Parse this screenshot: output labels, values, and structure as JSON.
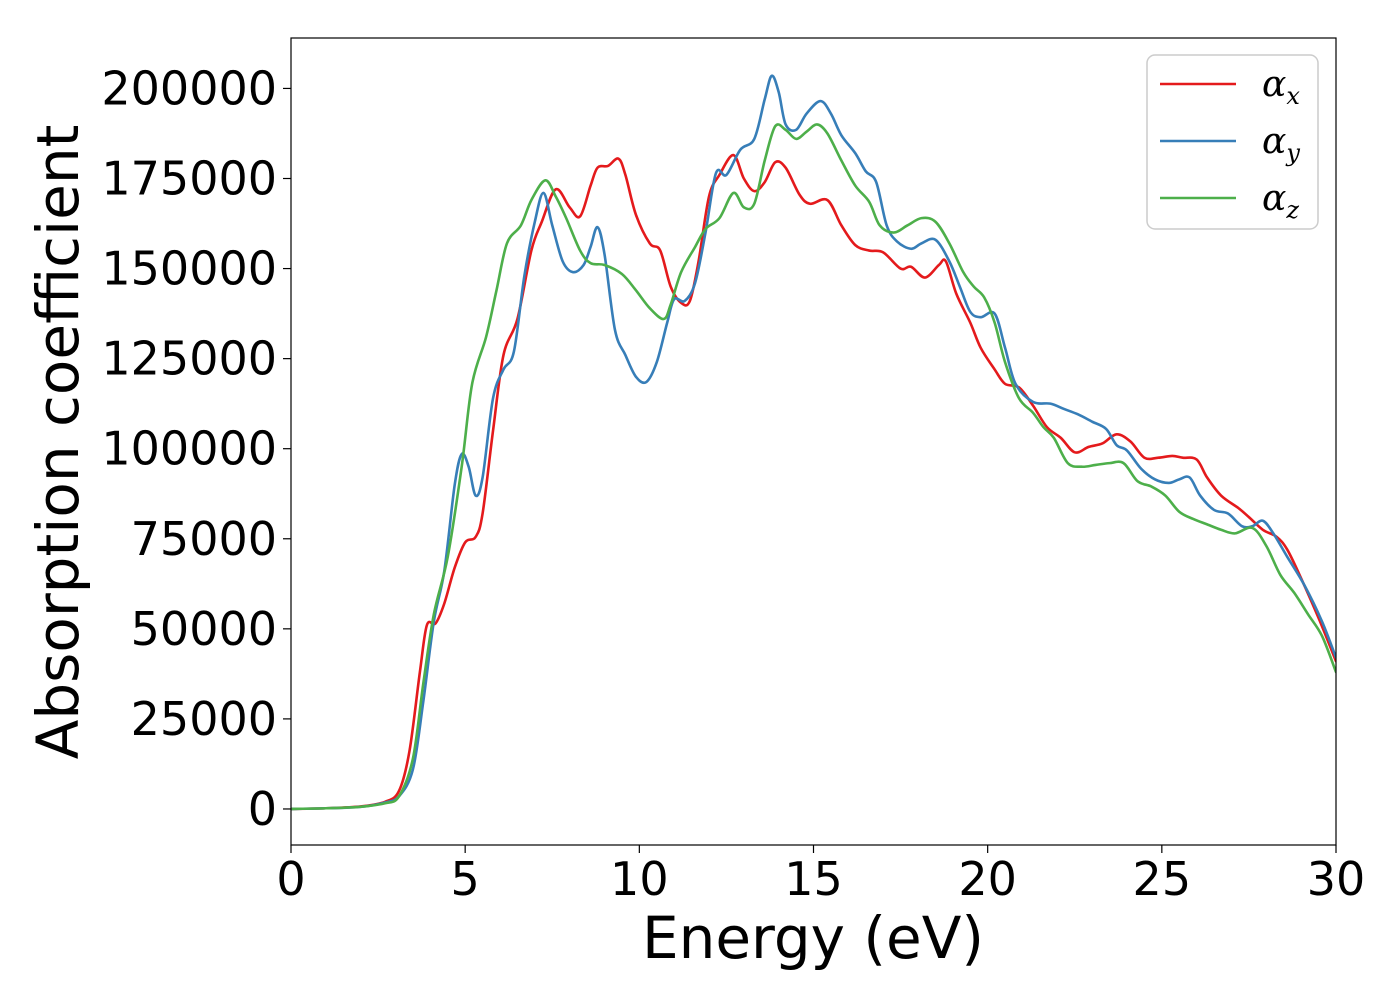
{
  "chart_data": {
    "type": "line",
    "title": "",
    "xlabel": "Energy (eV)",
    "ylabel": "Absorption coefficient",
    "xlim": [
      0,
      30
    ],
    "ylim": [
      -10000,
      214000
    ],
    "xticks": [
      0,
      5,
      10,
      15,
      20,
      25,
      30
    ],
    "yticks": [
      0,
      25000,
      50000,
      75000,
      100000,
      125000,
      150000,
      175000,
      200000
    ],
    "grid": false,
    "legend": "top-right",
    "series": [
      {
        "name": "α",
        "subscript": "x",
        "color": "#e41a1c",
        "points": [
          [
            0,
            0
          ],
          [
            1,
            200
          ],
          [
            2,
            700
          ],
          [
            2.7,
            2000
          ],
          [
            3.1,
            5000
          ],
          [
            3.4,
            16000
          ],
          [
            3.7,
            38000
          ],
          [
            3.9,
            51000
          ],
          [
            4.15,
            51500
          ],
          [
            4.4,
            57000
          ],
          [
            4.7,
            67000
          ],
          [
            5.0,
            74000
          ],
          [
            5.3,
            75500
          ],
          [
            5.5,
            82000
          ],
          [
            5.8,
            105000
          ],
          [
            6.1,
            126000
          ],
          [
            6.5,
            136000
          ],
          [
            6.9,
            155000
          ],
          [
            7.2,
            163000
          ],
          [
            7.6,
            172000
          ],
          [
            8.0,
            167000
          ],
          [
            8.3,
            164500
          ],
          [
            8.6,
            173000
          ],
          [
            8.8,
            178000
          ],
          [
            9.1,
            178500
          ],
          [
            9.4,
            180500
          ],
          [
            9.6,
            176000
          ],
          [
            9.9,
            165000
          ],
          [
            10.3,
            157000
          ],
          [
            10.6,
            155000
          ],
          [
            10.9,
            145000
          ],
          [
            11.2,
            140500
          ],
          [
            11.45,
            141000
          ],
          [
            11.7,
            152000
          ],
          [
            12.0,
            170000
          ],
          [
            12.3,
            176000
          ],
          [
            12.7,
            181500
          ],
          [
            13.0,
            175000
          ],
          [
            13.3,
            171500
          ],
          [
            13.6,
            174000
          ],
          [
            13.9,
            179500
          ],
          [
            14.2,
            178000
          ],
          [
            14.6,
            170500
          ],
          [
            14.9,
            168000
          ],
          [
            15.4,
            169000
          ],
          [
            15.8,
            162000
          ],
          [
            16.2,
            156500
          ],
          [
            16.6,
            155000
          ],
          [
            17.0,
            154500
          ],
          [
            17.5,
            150000
          ],
          [
            17.8,
            150500
          ],
          [
            18.2,
            147500
          ],
          [
            18.6,
            151000
          ],
          [
            18.8,
            152000
          ],
          [
            19.1,
            143000
          ],
          [
            19.5,
            135000
          ],
          [
            19.8,
            128000
          ],
          [
            20.2,
            122000
          ],
          [
            20.5,
            118000
          ],
          [
            20.9,
            117000
          ],
          [
            21.3,
            112000
          ],
          [
            21.7,
            106000
          ],
          [
            22.1,
            103000
          ],
          [
            22.5,
            99000
          ],
          [
            22.9,
            100500
          ],
          [
            23.3,
            101500
          ],
          [
            23.7,
            104000
          ],
          [
            24.1,
            102000
          ],
          [
            24.5,
            97500
          ],
          [
            24.9,
            97500
          ],
          [
            25.3,
            98000
          ],
          [
            25.6,
            97500
          ],
          [
            26.0,
            97000
          ],
          [
            26.3,
            92000
          ],
          [
            26.7,
            87000
          ],
          [
            27.2,
            83500
          ],
          [
            27.5,
            81000
          ],
          [
            27.9,
            77500
          ],
          [
            28.3,
            75500
          ],
          [
            28.6,
            72000
          ],
          [
            29.0,
            64000
          ],
          [
            29.5,
            53000
          ],
          [
            30.0,
            41000
          ]
        ]
      },
      {
        "name": "α",
        "subscript": "y",
        "color": "#377eb8",
        "points": [
          [
            0,
            0
          ],
          [
            1,
            200
          ],
          [
            2,
            600
          ],
          [
            2.7,
            1800
          ],
          [
            3.1,
            3500
          ],
          [
            3.5,
            11000
          ],
          [
            3.8,
            30000
          ],
          [
            4.1,
            52000
          ],
          [
            4.4,
            66000
          ],
          [
            4.7,
            90000
          ],
          [
            4.9,
            98500
          ],
          [
            5.1,
            95000
          ],
          [
            5.3,
            87000
          ],
          [
            5.5,
            92000
          ],
          [
            5.8,
            114000
          ],
          [
            6.1,
            122000
          ],
          [
            6.4,
            127000
          ],
          [
            6.7,
            148000
          ],
          [
            7.0,
            163000
          ],
          [
            7.25,
            171000
          ],
          [
            7.5,
            162000
          ],
          [
            7.8,
            152000
          ],
          [
            8.1,
            149000
          ],
          [
            8.4,
            151000
          ],
          [
            8.6,
            156000
          ],
          [
            8.8,
            161500
          ],
          [
            9.0,
            154000
          ],
          [
            9.3,
            133000
          ],
          [
            9.6,
            126000
          ],
          [
            9.9,
            120000
          ],
          [
            10.2,
            118500
          ],
          [
            10.5,
            124000
          ],
          [
            10.8,
            135000
          ],
          [
            11.0,
            141500
          ],
          [
            11.3,
            141000
          ],
          [
            11.6,
            146000
          ],
          [
            11.9,
            160000
          ],
          [
            12.2,
            176500
          ],
          [
            12.5,
            176000
          ],
          [
            12.9,
            183000
          ],
          [
            13.3,
            186000
          ],
          [
            13.6,
            197000
          ],
          [
            13.8,
            203500
          ],
          [
            14.0,
            199000
          ],
          [
            14.2,
            190000
          ],
          [
            14.5,
            188500
          ],
          [
            14.8,
            193000
          ],
          [
            15.2,
            196500
          ],
          [
            15.5,
            193000
          ],
          [
            15.8,
            187000
          ],
          [
            16.2,
            182000
          ],
          [
            16.5,
            177000
          ],
          [
            16.8,
            174000
          ],
          [
            17.1,
            162000
          ],
          [
            17.4,
            157500
          ],
          [
            17.8,
            155500
          ],
          [
            18.1,
            157000
          ],
          [
            18.5,
            158000
          ],
          [
            18.9,
            152000
          ],
          [
            19.2,
            145000
          ],
          [
            19.5,
            138000
          ],
          [
            19.8,
            136500
          ],
          [
            20.2,
            137500
          ],
          [
            20.5,
            128000
          ],
          [
            20.8,
            118000
          ],
          [
            21.3,
            113000
          ],
          [
            21.8,
            112500
          ],
          [
            22.2,
            111000
          ],
          [
            22.6,
            109500
          ],
          [
            23.0,
            107500
          ],
          [
            23.4,
            105500
          ],
          [
            23.7,
            101000
          ],
          [
            24.0,
            99500
          ],
          [
            24.4,
            94500
          ],
          [
            24.8,
            91500
          ],
          [
            25.2,
            90500
          ],
          [
            25.5,
            91500
          ],
          [
            25.8,
            92000
          ],
          [
            26.1,
            87000
          ],
          [
            26.5,
            83000
          ],
          [
            26.9,
            82000
          ],
          [
            27.3,
            78500
          ],
          [
            27.6,
            78500
          ],
          [
            27.9,
            80000
          ],
          [
            28.2,
            76500
          ],
          [
            28.6,
            70000
          ],
          [
            29.1,
            62000
          ],
          [
            29.6,
            52000
          ],
          [
            30.0,
            42000
          ]
        ]
      },
      {
        "name": "α",
        "subscript": "z",
        "color": "#4daf4a",
        "points": [
          [
            0,
            0
          ],
          [
            1,
            200
          ],
          [
            2,
            600
          ],
          [
            2.7,
            1600
          ],
          [
            3.1,
            3500
          ],
          [
            3.5,
            14000
          ],
          [
            3.8,
            35000
          ],
          [
            4.1,
            54000
          ],
          [
            4.5,
            70000
          ],
          [
            4.9,
            95000
          ],
          [
            5.2,
            118000
          ],
          [
            5.6,
            131000
          ],
          [
            5.9,
            144000
          ],
          [
            6.2,
            157000
          ],
          [
            6.6,
            162000
          ],
          [
            6.9,
            169000
          ],
          [
            7.3,
            174500
          ],
          [
            7.6,
            170000
          ],
          [
            7.9,
            164000
          ],
          [
            8.3,
            155000
          ],
          [
            8.6,
            151500
          ],
          [
            9.0,
            151000
          ],
          [
            9.5,
            148500
          ],
          [
            9.9,
            144000
          ],
          [
            10.3,
            139000
          ],
          [
            10.7,
            136000
          ],
          [
            10.9,
            140000
          ],
          [
            11.2,
            149000
          ],
          [
            11.6,
            156000
          ],
          [
            11.9,
            161000
          ],
          [
            12.3,
            164000
          ],
          [
            12.7,
            171000
          ],
          [
            13.0,
            167000
          ],
          [
            13.3,
            168000
          ],
          [
            13.6,
            180000
          ],
          [
            13.9,
            189500
          ],
          [
            14.2,
            188500
          ],
          [
            14.5,
            186000
          ],
          [
            14.8,
            188000
          ],
          [
            15.1,
            190000
          ],
          [
            15.4,
            187500
          ],
          [
            15.8,
            180000
          ],
          [
            16.2,
            173000
          ],
          [
            16.6,
            168500
          ],
          [
            16.9,
            162000
          ],
          [
            17.3,
            160000
          ],
          [
            17.7,
            162000
          ],
          [
            18.1,
            164000
          ],
          [
            18.5,
            163000
          ],
          [
            18.9,
            157000
          ],
          [
            19.3,
            149000
          ],
          [
            19.6,
            145000
          ],
          [
            19.9,
            142000
          ],
          [
            20.2,
            135000
          ],
          [
            20.5,
            124000
          ],
          [
            20.9,
            114000
          ],
          [
            21.3,
            110000
          ],
          [
            21.6,
            106000
          ],
          [
            21.9,
            103000
          ],
          [
            22.3,
            96000
          ],
          [
            22.7,
            95000
          ],
          [
            23.1,
            95500
          ],
          [
            23.5,
            96000
          ],
          [
            23.9,
            96000
          ],
          [
            24.3,
            91000
          ],
          [
            24.7,
            89500
          ],
          [
            25.1,
            87000
          ],
          [
            25.5,
            82500
          ],
          [
            25.9,
            80500
          ],
          [
            26.3,
            79000
          ],
          [
            26.7,
            77500
          ],
          [
            27.1,
            76500
          ],
          [
            27.6,
            78000
          ],
          [
            28.0,
            73000
          ],
          [
            28.4,
            65000
          ],
          [
            28.8,
            60000
          ],
          [
            29.2,
            54000
          ],
          [
            29.6,
            48000
          ],
          [
            30.0,
            38000
          ]
        ]
      }
    ]
  }
}
